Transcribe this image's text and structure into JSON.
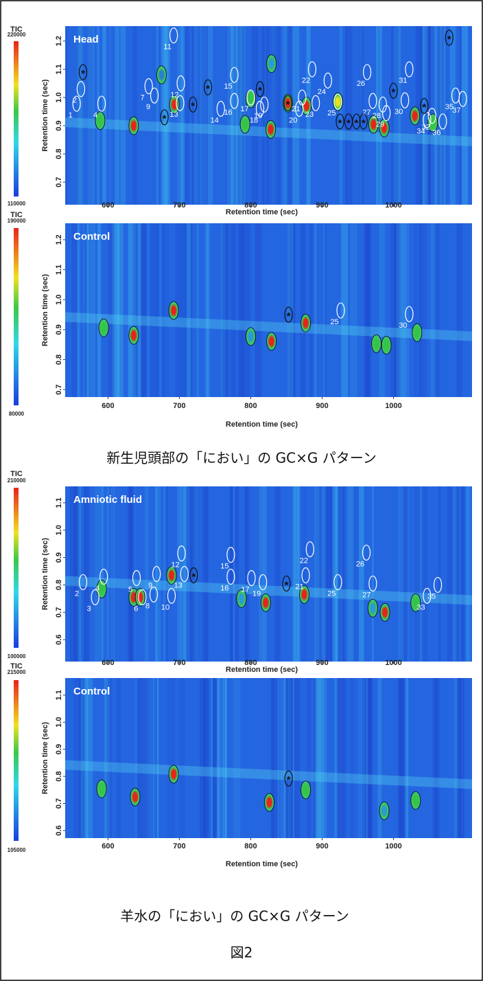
{
  "chart_data": [
    {
      "type": "heatmap",
      "title": "Head",
      "xlabel": "Retention time (sec)",
      "ylabel": "Retention time (sec)",
      "colorbar_label": "TIC",
      "colorbar_lim": [
        110000,
        220000
      ],
      "background": "#2466e0",
      "xlim": [
        540,
        1110
      ],
      "xticks": [
        600,
        700,
        800,
        900,
        1000
      ],
      "ylim": [
        0.62,
        1.253
      ],
      "yticks": [
        0.7,
        0.8,
        0.9,
        {
          "value": 1,
          "label": "1.0"
        },
        1.1,
        1.2
      ],
      "peaks": [
        {
          "label": "1",
          "x": 556,
          "y": 0.978,
          "outline": "#ffffff"
        },
        {
          "label": "2",
          "x": 562,
          "y": 1.03,
          "outline": "#ffffff"
        },
        {
          "label": "4",
          "x": 591,
          "y": 0.978,
          "outline": "#ffffff"
        },
        {
          "label": "7",
          "x": 657,
          "y": 1.04,
          "outline": "#ffffff"
        },
        {
          "label": "9",
          "x": 665,
          "y": 1.007,
          "outline": "#ffffff"
        },
        {
          "label": "11",
          "x": 692,
          "y": 1.22,
          "outline": "#ffffff"
        },
        {
          "label": "12",
          "x": 702,
          "y": 1.05,
          "outline": "#ffffff"
        },
        {
          "label": "13",
          "x": 701,
          "y": 0.98,
          "outline": "#ffffff"
        },
        {
          "label": "14",
          "x": 758,
          "y": 0.96,
          "outline": "#ffffff"
        },
        {
          "label": "15",
          "x": 777,
          "y": 1.08,
          "outline": "#ffffff"
        },
        {
          "label": "16",
          "x": 777,
          "y": 0.988,
          "outline": "#ffffff"
        },
        {
          "label": "17",
          "x": 800,
          "y": 1.0,
          "outline": "#ffffff"
        },
        {
          "label": "18",
          "x": 813,
          "y": 0.96,
          "outline": "#ffffff"
        },
        {
          "label": "19",
          "x": 819,
          "y": 0.975,
          "outline": "#ffffff"
        },
        {
          "label": "20",
          "x": 868,
          "y": 0.96,
          "outline": "#ffffff"
        },
        {
          "label": "21",
          "x": 872,
          "y": 1.0,
          "outline": "#ffffff"
        },
        {
          "label": "22",
          "x": 886,
          "y": 1.1,
          "outline": "#ffffff"
        },
        {
          "label": "23",
          "x": 891,
          "y": 0.98,
          "outline": "#ffffff"
        },
        {
          "label": "24",
          "x": 908,
          "y": 1.06,
          "outline": "#ffffff"
        },
        {
          "label": "25",
          "x": 922,
          "y": 0.985,
          "outline": "#ffffff"
        },
        {
          "label": "26",
          "x": 963,
          "y": 1.09,
          "outline": "#ffffff"
        },
        {
          "label": "27",
          "x": 971,
          "y": 0.988,
          "outline": "#ffffff"
        },
        {
          "label": "28",
          "x": 985,
          "y": 0.975,
          "outline": "#ffffff"
        },
        {
          "label": "29",
          "x": 990,
          "y": 0.945,
          "outline": "#ffffff"
        },
        {
          "label": "30",
          "x": 1016,
          "y": 0.99,
          "outline": "#ffffff"
        },
        {
          "label": "31",
          "x": 1022,
          "y": 1.1,
          "outline": "#ffffff"
        },
        {
          "label": "32",
          "x": 1054,
          "y": 0.935,
          "outline": "#ffffff"
        },
        {
          "label": "34",
          "x": 1047,
          "y": 0.92,
          "outline": "#ffffff"
        },
        {
          "label": "35",
          "x": 1087,
          "y": 1.007,
          "outline": "#ffffff"
        },
        {
          "label": "36",
          "x": 1069,
          "y": 0.915,
          "outline": "#ffffff"
        },
        {
          "label": "37",
          "x": 1097,
          "y": 0.995,
          "outline": "#ffffff"
        },
        {
          "label": "*",
          "x": 565,
          "y": 1.09,
          "outline": "#111111"
        },
        {
          "label": "*",
          "x": 679,
          "y": 0.93,
          "outline": "#111111"
        },
        {
          "label": "*",
          "x": 719,
          "y": 0.975,
          "outline": "#111111"
        },
        {
          "label": "*",
          "x": 740,
          "y": 1.036,
          "outline": "#111111"
        },
        {
          "label": "*",
          "x": 813,
          "y": 1.03,
          "outline": "#111111"
        },
        {
          "label": "*",
          "x": 852,
          "y": 0.98,
          "outline": "#111111"
        },
        {
          "label": "*",
          "x": 925,
          "y": 0.915,
          "outline": "#111111"
        },
        {
          "label": "*",
          "x": 937,
          "y": 0.915,
          "outline": "#111111"
        },
        {
          "label": "*",
          "x": 948,
          "y": 0.915,
          "outline": "#111111"
        },
        {
          "label": "*",
          "x": 958,
          "y": 0.915,
          "outline": "#111111"
        },
        {
          "label": "*",
          "x": 1000,
          "y": 1.024,
          "outline": "#111111"
        },
        {
          "label": "*",
          "x": 1043,
          "y": 0.97,
          "outline": "#111111"
        },
        {
          "label": "*",
          "x": 1078,
          "y": 1.212,
          "outline": "#111111"
        }
      ],
      "spots": [
        {
          "x": 636,
          "y": 0.9,
          "color": "#e8231c"
        },
        {
          "x": 693,
          "y": 0.975,
          "color": "#e8231c"
        },
        {
          "x": 828,
          "y": 0.887,
          "color": "#e8231c"
        },
        {
          "x": 852,
          "y": 0.98,
          "color": "#e8231c"
        },
        {
          "x": 878,
          "y": 0.97,
          "color": "#e8231c"
        },
        {
          "x": 972,
          "y": 0.905,
          "color": "#e8231c"
        },
        {
          "x": 987,
          "y": 0.892,
          "color": "#e8231c"
        },
        {
          "x": 1030,
          "y": 0.935,
          "color": "#e8231c"
        },
        {
          "x": 589,
          "y": 0.918,
          "color": "#35c44a"
        },
        {
          "x": 792,
          "y": 0.905,
          "color": "#35c44a"
        },
        {
          "x": 922,
          "y": 0.985,
          "color": "#e8e020"
        },
        {
          "x": 800,
          "y": 0.995,
          "color": "#35c44a"
        },
        {
          "x": 1055,
          "y": 0.91,
          "color": "#35c44a"
        },
        {
          "x": 675,
          "y": 1.08,
          "color": "#2a7fd0"
        },
        {
          "x": 829,
          "y": 1.12,
          "color": "#2a9ad8"
        }
      ]
    },
    {
      "type": "heatmap",
      "title": "Control",
      "xlabel": "Retention time (sec)",
      "ylabel": "Retention time (sec)",
      "colorbar_label": "TIC",
      "colorbar_lim": [
        80000,
        190000
      ],
      "background": "#2466e0",
      "xlim": [
        540,
        1110
      ],
      "xticks": [
        600,
        700,
        800,
        900,
        1000
      ],
      "ylim": [
        0.675,
        1.255
      ],
      "yticks": [
        0.7,
        0.8,
        0.9,
        {
          "value": 1,
          "label": "1.0"
        },
        1.1,
        1.2
      ],
      "peaks": [
        {
          "label": "25",
          "x": 926,
          "y": 0.964,
          "outline": "#ffffff"
        },
        {
          "label": "30",
          "x": 1022,
          "y": 0.952,
          "outline": "#ffffff"
        },
        {
          "label": "*",
          "x": 853,
          "y": 0.95,
          "outline": "#111111"
        }
      ],
      "spots": [
        {
          "x": 594,
          "y": 0.906,
          "color": "#35c44a"
        },
        {
          "x": 636,
          "y": 0.881,
          "color": "#e8231c"
        },
        {
          "x": 692,
          "y": 0.964,
          "color": "#e8231c"
        },
        {
          "x": 800,
          "y": 0.877,
          "color": "#2a9ad8"
        },
        {
          "x": 829,
          "y": 0.861,
          "color": "#e8231c"
        },
        {
          "x": 877,
          "y": 0.922,
          "color": "#e8231c"
        },
        {
          "x": 976,
          "y": 0.853,
          "color": "#35c44a"
        },
        {
          "x": 990,
          "y": 0.848,
          "color": "#35c44a"
        },
        {
          "x": 1033,
          "y": 0.89,
          "color": "#35c44a"
        }
      ]
    },
    {
      "type": "heatmap",
      "title": "Amniotic fluid",
      "xlabel": "Retention time (sec)",
      "ylabel": "Retention time (sec)",
      "colorbar_label": "TIC",
      "colorbar_lim": [
        100000,
        210000
      ],
      "background": "#2466e0",
      "xlim": [
        540,
        1110
      ],
      "xticks": [
        600,
        700,
        800,
        900,
        1000
      ],
      "ylim": [
        0.52,
        1.16
      ],
      "yticks": [
        0.6,
        0.7,
        0.8,
        0.9,
        {
          "value": 1,
          "label": "1.0"
        },
        1.1
      ],
      "peaks": [
        {
          "label": "2",
          "x": 565,
          "y": 0.81,
          "outline": "#ffffff"
        },
        {
          "label": "3",
          "x": 582,
          "y": 0.755,
          "outline": "#ffffff"
        },
        {
          "label": "4",
          "x": 594,
          "y": 0.83,
          "outline": "#ffffff"
        },
        {
          "label": "5",
          "x": 640,
          "y": 0.825,
          "outline": "#ffffff"
        },
        {
          "label": "6",
          "x": 648,
          "y": 0.755,
          "outline": "#ffffff"
        },
        {
          "label": "8",
          "x": 664,
          "y": 0.765,
          "outline": "#ffffff"
        },
        {
          "label": "9",
          "x": 668,
          "y": 0.84,
          "outline": "#ffffff"
        },
        {
          "label": "10",
          "x": 689,
          "y": 0.76,
          "outline": "#ffffff"
        },
        {
          "label": "12",
          "x": 703,
          "y": 0.915,
          "outline": "#ffffff"
        },
        {
          "label": "13",
          "x": 707,
          "y": 0.84,
          "outline": "#ffffff"
        },
        {
          "label": "15",
          "x": 772,
          "y": 0.91,
          "outline": "#ffffff"
        },
        {
          "label": "16",
          "x": 772,
          "y": 0.83,
          "outline": "#ffffff"
        },
        {
          "label": "17",
          "x": 801,
          "y": 0.825,
          "outline": "#ffffff"
        },
        {
          "label": "19",
          "x": 817,
          "y": 0.81,
          "outline": "#ffffff"
        },
        {
          "label": "21",
          "x": 877,
          "y": 0.835,
          "outline": "#ffffff"
        },
        {
          "label": "22",
          "x": 883,
          "y": 0.93,
          "outline": "#ffffff"
        },
        {
          "label": "25",
          "x": 922,
          "y": 0.81,
          "outline": "#ffffff"
        },
        {
          "label": "26",
          "x": 962,
          "y": 0.918,
          "outline": "#ffffff"
        },
        {
          "label": "27",
          "x": 971,
          "y": 0.805,
          "outline": "#ffffff"
        },
        {
          "label": "33",
          "x": 1047,
          "y": 0.76,
          "outline": "#ffffff"
        },
        {
          "label": "35",
          "x": 1062,
          "y": 0.8,
          "outline": "#ffffff"
        },
        {
          "label": "*",
          "x": 720,
          "y": 0.835,
          "outline": "#111111"
        },
        {
          "label": "*",
          "x": 850,
          "y": 0.805,
          "outline": "#111111"
        }
      ],
      "spots": [
        {
          "x": 591,
          "y": 0.785,
          "color": "#35c44a"
        },
        {
          "x": 636,
          "y": 0.755,
          "color": "#e8231c"
        },
        {
          "x": 645,
          "y": 0.755,
          "color": "#e8231c"
        },
        {
          "x": 689,
          "y": 0.835,
          "color": "#e8231c"
        },
        {
          "x": 787,
          "y": 0.75,
          "color": "#2a9ad8"
        },
        {
          "x": 821,
          "y": 0.735,
          "color": "#e8231c"
        },
        {
          "x": 875,
          "y": 0.765,
          "color": "#e8231c"
        },
        {
          "x": 971,
          "y": 0.715,
          "color": "#2a9ad8"
        },
        {
          "x": 988,
          "y": 0.7,
          "color": "#e8231c"
        },
        {
          "x": 1031,
          "y": 0.735,
          "color": "#35c44a"
        }
      ]
    },
    {
      "type": "heatmap",
      "title": "Control",
      "xlabel": "Retention time (sec)",
      "ylabel": "Retention time (sec)",
      "colorbar_label": "TIC",
      "colorbar_lim": [
        105000,
        215000
      ],
      "background": "#2466e0",
      "xlim": [
        540,
        1110
      ],
      "xticks": [
        600,
        700,
        800,
        900,
        1000
      ],
      "ylim": [
        0.572,
        1.163
      ],
      "yticks": [
        0.6,
        0.7,
        0.8,
        0.9,
        {
          "value": 1,
          "label": "1.0"
        },
        1.1
      ],
      "peaks": [
        {
          "label": "*",
          "x": 853,
          "y": 0.792,
          "outline": "#111111"
        }
      ],
      "spots": [
        {
          "x": 591,
          "y": 0.754,
          "color": "#35c44a"
        },
        {
          "x": 638,
          "y": 0.724,
          "color": "#e8231c"
        },
        {
          "x": 692,
          "y": 0.808,
          "color": "#e8231c"
        },
        {
          "x": 826,
          "y": 0.704,
          "color": "#e8231c"
        },
        {
          "x": 877,
          "y": 0.75,
          "color": "#35c44a"
        },
        {
          "x": 987,
          "y": 0.673,
          "color": "#2a9ad8"
        },
        {
          "x": 1031,
          "y": 0.711,
          "color": "#35c44a"
        }
      ]
    }
  ],
  "captions": [
    "新生児頭部の「におい」の GC×G パターン",
    "羊水の「におい」の GC×G パターン"
  ],
  "figure_label": "図2"
}
